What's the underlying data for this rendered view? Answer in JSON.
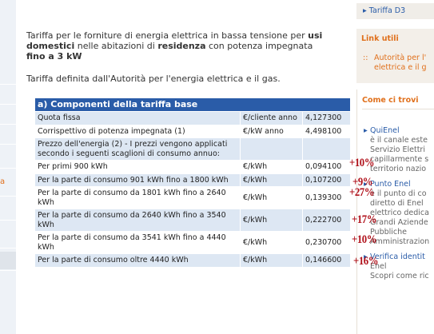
{
  "left_nav": [
    "a"
  ],
  "intro": {
    "paragraph1": [
      {
        "text": "Tariffa per le forniture di energia elettrica in bassa tensione per ",
        "bold": false
      },
      {
        "text": "usi domestici",
        "bold": true
      },
      {
        "text": " nelle abitazioni di ",
        "bold": false
      },
      {
        "text": "residenza",
        "bold": true
      },
      {
        "text": " con potenza impegnata ",
        "bold": false
      },
      {
        "text": "fino a 3 kW",
        "bold": true
      }
    ],
    "paragraph2": "Tariffa definita dall'Autorità per l'energia elettrica e il gas."
  },
  "table": {
    "header": "a) Componenti della tariffa base",
    "rows": [
      [
        "Quota fissa",
        "€/cliente anno",
        "4,127300"
      ],
      [
        "Corrispettivo di potenza impegnata (1)",
        "€/kW anno",
        "4,498100"
      ],
      [
        "Prezzo dell'energia (2) - I prezzi vengono applicati secondo i seguenti scaglioni di consumo annuo:",
        null,
        null
      ],
      [
        "Per primi 900 kWh",
        "€/kWh",
        "0,094100"
      ],
      [
        "Per la parte di consumo 901 kWh fino a 1800 kWh",
        "€/kWh",
        "0,107200"
      ],
      [
        "Per la parte di consumo da 1801 kWh fino a 2640 kWh",
        "€/kWh",
        "0,139300"
      ],
      [
        "Per la parte di consumo da 2640 kWh fino a 3540 kWh",
        "€/kWh",
        "0,222700"
      ],
      [
        "Per la parte di consumo da 3541 kWh fino a 4440 kWh",
        "€/kWh",
        "0,230700"
      ],
      [
        "Per la parte di consumo oltre 4440 kWh",
        "€/kWh",
        "0,146600"
      ]
    ]
  },
  "annotations": [
    "+10%",
    "+9%",
    "+27%",
    "+17%",
    "+10%",
    "+16%"
  ],
  "sidebar": {
    "top_link": "Tariffa D3",
    "links_title": "Link utili",
    "links": [
      "Autorità per l'",
      "elettrica e il g"
    ],
    "find_title": "Come ci trovi",
    "items": [
      {
        "title": "QuiEnel",
        "lines": [
          "è il canale este",
          "Servizio Elettri",
          "capillarmente s",
          "territorio nazio"
        ]
      },
      {
        "title": "Punto Enel",
        "lines": [
          "è il punto di co",
          "diretto di Enel",
          "elettrico dedica",
          "Grandi Aziende",
          "Pubbliche",
          "Amministrazion"
        ]
      },
      {
        "title": "Verifica identit",
        "lines": [
          "Enel",
          "Scopri come ric"
        ]
      }
    ]
  }
}
